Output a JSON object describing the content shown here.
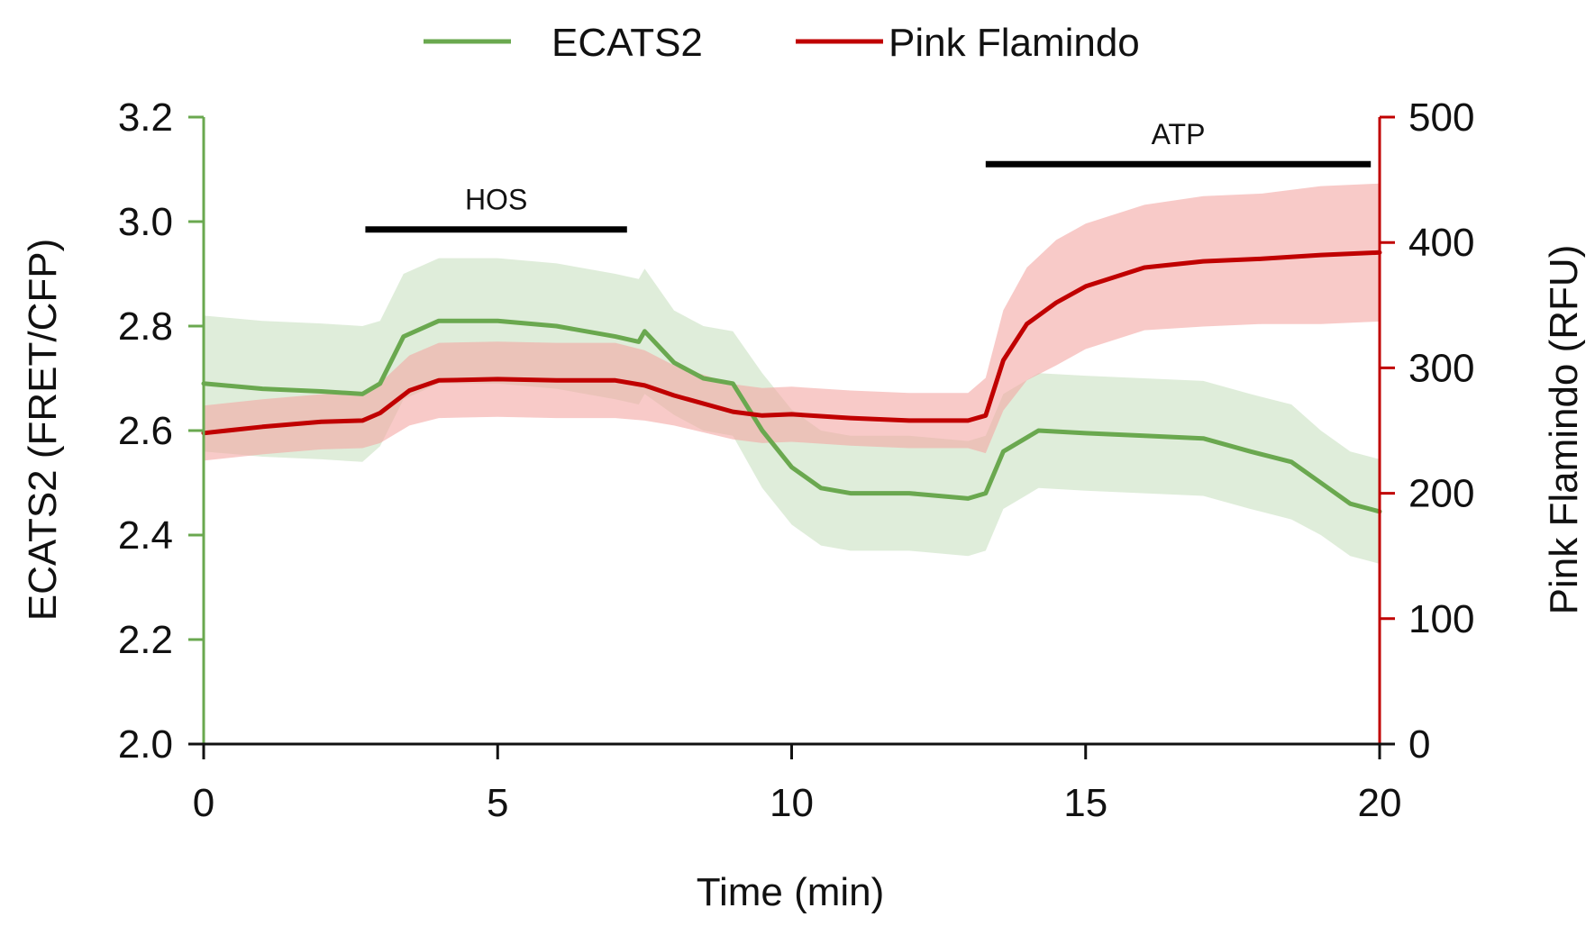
{
  "chart_data": {
    "type": "line",
    "title": "",
    "xlabel": "Time (min)",
    "ylabel_left": "ECATS2 (FRET/CFP)",
    "ylabel_right": "Pink Flamindo (RFU)",
    "xlim": [
      0,
      20
    ],
    "ylim_left": [
      2.0,
      3.2
    ],
    "ylim_right": [
      0,
      500
    ],
    "x_ticks": [
      0,
      5,
      10,
      15,
      20
    ],
    "x_tick_labels": [
      "0",
      "5",
      "10",
      "15",
      "20"
    ],
    "y_left_ticks": [
      2.0,
      2.2,
      2.4,
      2.6,
      2.8,
      3.0,
      3.2
    ],
    "y_left_tick_labels": [
      "2.0",
      "2.2",
      "2.4",
      "2.6",
      "2.8",
      "3.0",
      "3.2"
    ],
    "y_right_ticks": [
      0,
      100,
      200,
      300,
      400,
      500
    ],
    "y_right_tick_labels": [
      "0",
      "100",
      "200",
      "300",
      "400",
      "500"
    ],
    "grid": false,
    "legend_position": "top-center",
    "colors": {
      "ecats2_line": "#6aa84f",
      "ecats2_band": "#d9ead3",
      "flamindo_line": "#c00000",
      "flamindo_band": "#f4a7a3",
      "left_axis": "#6aa84f",
      "right_axis": "#c00000",
      "bottom_axis": "#111111",
      "annotation_bar": "#000000"
    },
    "series": [
      {
        "name": "ECATS2",
        "axis": "left",
        "x": [
          0,
          1,
          2,
          2.7,
          3.0,
          3.4,
          4.0,
          5,
          6,
          7.0,
          7.4,
          7.5,
          8.0,
          8.5,
          9.0,
          9.5,
          10.0,
          10.5,
          11,
          12,
          13.0,
          13.3,
          13.6,
          14.2,
          15,
          16,
          17.0,
          17.8,
          18.5,
          19.0,
          19.5,
          20
        ],
        "values": [
          2.69,
          2.68,
          2.675,
          2.67,
          2.69,
          2.78,
          2.81,
          2.81,
          2.8,
          2.78,
          2.77,
          2.79,
          2.73,
          2.7,
          2.69,
          2.6,
          2.53,
          2.49,
          2.48,
          2.48,
          2.47,
          2.48,
          2.56,
          2.6,
          2.595,
          2.59,
          2.585,
          2.56,
          2.54,
          2.5,
          2.46,
          2.445
        ],
        "errors": [
          0.13,
          0.13,
          0.13,
          0.13,
          0.12,
          0.12,
          0.12,
          0.12,
          0.12,
          0.12,
          0.12,
          0.12,
          0.1,
          0.1,
          0.1,
          0.11,
          0.11,
          0.11,
          0.11,
          0.11,
          0.11,
          0.11,
          0.11,
          0.11,
          0.11,
          0.11,
          0.11,
          0.11,
          0.11,
          0.1,
          0.1,
          0.1
        ]
      },
      {
        "name": "Pink Flamindo",
        "axis": "right",
        "x": [
          0,
          1,
          2,
          2.7,
          3.0,
          3.5,
          4.0,
          5,
          6,
          7.0,
          7.5,
          8.0,
          9.0,
          9.5,
          10.0,
          11,
          12,
          13.0,
          13.3,
          13.6,
          14.0,
          14.5,
          15,
          16,
          17,
          18,
          19,
          20
        ],
        "values": [
          248,
          253,
          257,
          258,
          264,
          282,
          290,
          291,
          290,
          290,
          286,
          278,
          265,
          262,
          263,
          260,
          258,
          258,
          262,
          306,
          335,
          352,
          365,
          380,
          385,
          387,
          390,
          392
        ],
        "errors": [
          22,
          22,
          22,
          22,
          24,
          28,
          30,
          30,
          30,
          30,
          28,
          24,
          22,
          22,
          22,
          22,
          22,
          22,
          30,
          40,
          45,
          50,
          50,
          50,
          52,
          52,
          55,
          55
        ]
      }
    ],
    "legend": [
      "ECATS2",
      "Pink Flamindo"
    ],
    "annotations": [
      {
        "label": "HOS",
        "x_start": 2.75,
        "x_end": 7.2,
        "y_left": 2.985
      },
      {
        "label": "ATP",
        "x_start": 13.3,
        "x_end": 19.85,
        "y_left": 3.11
      }
    ]
  }
}
